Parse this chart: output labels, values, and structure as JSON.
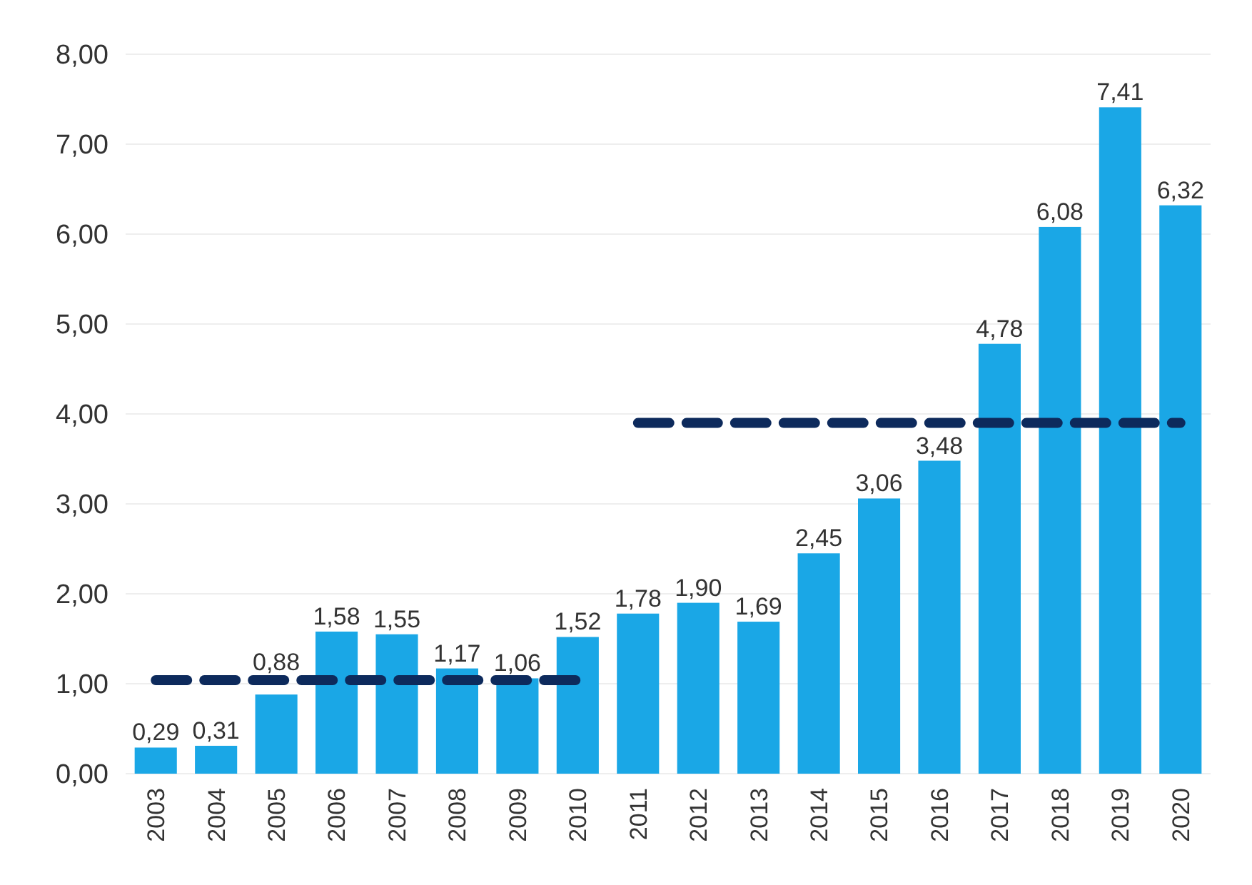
{
  "chart_data": {
    "type": "bar",
    "categories": [
      "2003",
      "2004",
      "2005",
      "2006",
      "2007",
      "2008",
      "2009",
      "2010",
      "2011",
      "2012",
      "2013",
      "2014",
      "2015",
      "2016",
      "2017",
      "2018",
      "2019",
      "2020"
    ],
    "series": [
      {
        "color": "#1aa7e6",
        "values": [
          0.29,
          0.31,
          0.88,
          1.58,
          1.55,
          1.17,
          1.06,
          1.52,
          1.78,
          1.9,
          1.69,
          2.45,
          3.06,
          3.48,
          4.78,
          6.08,
          7.41,
          6.32
        ],
        "value_labels": [
          "0,29",
          "0,31",
          "0,88",
          "1,58",
          "1,55",
          "1,17",
          "1,06",
          "1,52",
          "1,78",
          "1,90",
          "1,69",
          "2,45",
          "3,06",
          "3,48",
          "4,78",
          "6,08",
          "7,41",
          "6,32"
        ]
      },
      {
        "type": "line",
        "color": "#0d2a5c",
        "line_style": "dashed",
        "values": [
          1.04,
          1.04,
          1.04,
          1.04,
          1.04,
          1.04,
          1.04,
          1.04,
          null,
          null,
          null,
          null,
          null,
          null,
          null,
          null,
          null,
          null
        ]
      },
      {
        "type": "line",
        "color": "#0d2a5c",
        "line_style": "dashed",
        "values": [
          null,
          null,
          null,
          null,
          null,
          null,
          null,
          null,
          3.9,
          3.9,
          3.9,
          3.9,
          3.9,
          3.9,
          3.9,
          3.9,
          3.9,
          3.9
        ]
      }
    ],
    "ylim": [
      0,
      8
    ],
    "yticks": [
      {
        "value": 0,
        "label": "0,00"
      },
      {
        "value": 1,
        "label": "1,00"
      },
      {
        "value": 2,
        "label": "2,00"
      },
      {
        "value": 3,
        "label": "3,00"
      },
      {
        "value": 4,
        "label": "4,00"
      },
      {
        "value": 5,
        "label": "5,00"
      },
      {
        "value": 6,
        "label": "6,00"
      },
      {
        "value": 7,
        "label": "7,00"
      },
      {
        "value": 8,
        "label": "8,00"
      }
    ],
    "grid": "y"
  }
}
